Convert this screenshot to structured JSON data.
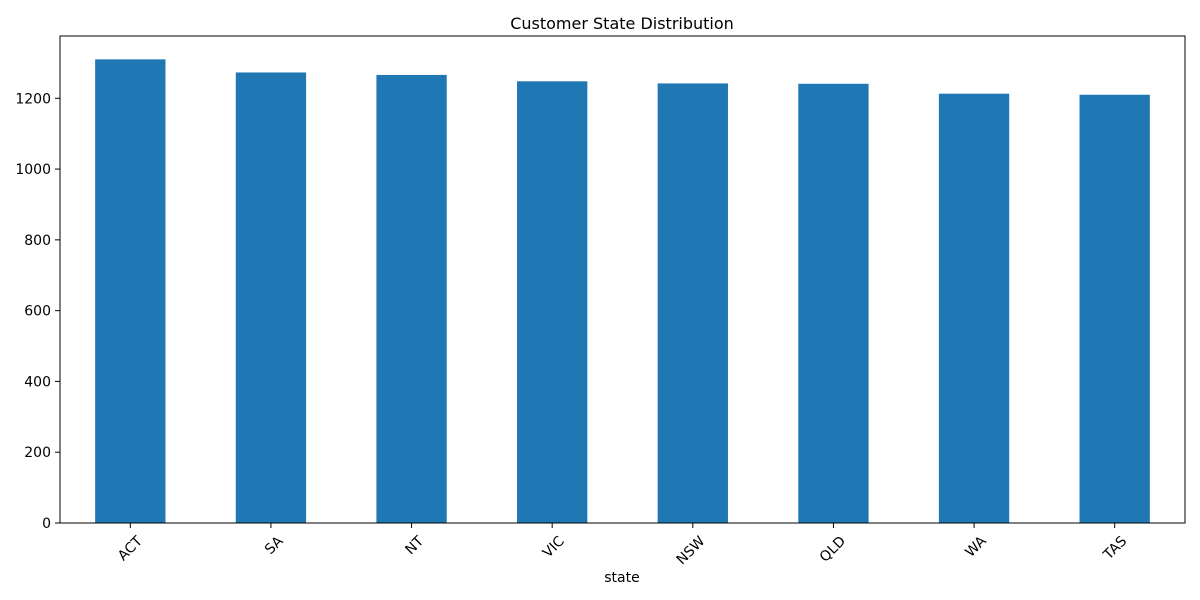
{
  "chart_data": {
    "type": "bar",
    "title": "Customer State Distribution",
    "xlabel": "state",
    "ylabel": "",
    "categories": [
      "ACT",
      "SA",
      "NT",
      "VIC",
      "NSW",
      "QLD",
      "WA",
      "TAS"
    ],
    "values": [
      1310,
      1273,
      1266,
      1248,
      1242,
      1241,
      1213,
      1210
    ],
    "ylim": [
      0,
      1376
    ],
    "yticks": [
      0,
      200,
      400,
      600,
      800,
      1000,
      1200
    ],
    "ytick_labels": [
      "0",
      "200",
      "400",
      "600",
      "800",
      "1000",
      "1200"
    ],
    "xtick_rotation": 45,
    "grid": false,
    "legend": "none",
    "bar_color": "#1f77b4"
  }
}
